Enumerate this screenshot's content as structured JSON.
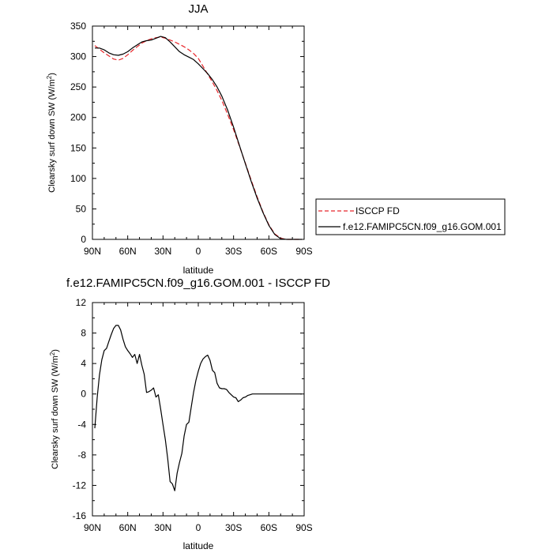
{
  "chart_data": [
    {
      "type": "line",
      "title": "JJA",
      "xlabel": "latitude",
      "ylabel": "Clearsky surf down SW (W/m",
      "ylabel_sup": "2",
      "ylabel_end": ")",
      "xlim": [
        90,
        -90
      ],
      "ylim": [
        0,
        350
      ],
      "xticks": [
        {
          "v": 90,
          "label": "90N"
        },
        {
          "v": 60,
          "label": "60N"
        },
        {
          "v": 30,
          "label": "30N"
        },
        {
          "v": 0,
          "label": "0"
        },
        {
          "v": -30,
          "label": "30S"
        },
        {
          "v": -60,
          "label": "60S"
        },
        {
          "v": -90,
          "label": "90S"
        }
      ],
      "yticks": [
        0,
        50,
        100,
        150,
        200,
        250,
        300,
        350
      ],
      "legend_position": "outside-right",
      "series": [
        {
          "name": "ISCCP FD",
          "color": "#e8262a",
          "dash": "dashed",
          "x": [
            88,
            84,
            80,
            76,
            72,
            68,
            64,
            60,
            56,
            52,
            48,
            44,
            40,
            36,
            32,
            28,
            24,
            20,
            16,
            12,
            8,
            4,
            0,
            -4,
            -8,
            -12,
            -16,
            -20,
            -25,
            -30,
            -35,
            -40,
            -45,
            -50,
            -55,
            -60,
            -65,
            -70,
            -75,
            -80,
            -85,
            -88
          ],
          "y": [
            318,
            312,
            306,
            301,
            296,
            294,
            297,
            303,
            310,
            316,
            322,
            326,
            329,
            331,
            332,
            330,
            327,
            324,
            320,
            316,
            311,
            305,
            297,
            284,
            271,
            258,
            244,
            228,
            205,
            180,
            153,
            125,
            97,
            70,
            45,
            24,
            9,
            2,
            0,
            0,
            0,
            0
          ]
        },
        {
          "name": "f.e12.FAMIPC5CN.f09_g16.GOM.001",
          "color": "#000000",
          "dash": "solid",
          "x": [
            88,
            84,
            80,
            76,
            72,
            68,
            64,
            60,
            56,
            52,
            48,
            44,
            40,
            36,
            32,
            28,
            24,
            20,
            16,
            12,
            8,
            4,
            0,
            -4,
            -8,
            -12,
            -16,
            -20,
            -25,
            -30,
            -35,
            -40,
            -45,
            -50,
            -55,
            -60,
            -65,
            -70,
            -75,
            -80,
            -85,
            -88
          ],
          "y": [
            314,
            314,
            311,
            306,
            303,
            302,
            304,
            308,
            314,
            319,
            324,
            326,
            327,
            330,
            333,
            331,
            324,
            316,
            308,
            303,
            299,
            295,
            288,
            280,
            272,
            262,
            250,
            235,
            212,
            184,
            154,
            124,
            95,
            68,
            44,
            23,
            8,
            1,
            0,
            0,
            0,
            0
          ]
        }
      ]
    },
    {
      "type": "line",
      "title": "f.e12.FAMIPC5CN.f09_g16.GOM.001 - ISCCP FD",
      "xlabel": "latitude",
      "ylabel": "Clearsky surf down SW (W/m",
      "ylabel_sup": "2",
      "ylabel_end": ")",
      "xlim": [
        90,
        -90
      ],
      "ylim": [
        -16,
        12
      ],
      "xticks": [
        {
          "v": 90,
          "label": "90N"
        },
        {
          "v": 60,
          "label": "60N"
        },
        {
          "v": 30,
          "label": "30N"
        },
        {
          "v": 0,
          "label": "0"
        },
        {
          "v": -30,
          "label": "30S"
        },
        {
          "v": -60,
          "label": "60S"
        },
        {
          "v": -90,
          "label": "90S"
        }
      ],
      "yticks": [
        12,
        8,
        4,
        0,
        -4,
        -8,
        -12,
        -16
      ],
      "series": [
        {
          "color": "#000000",
          "dash": "solid",
          "x": [
            88,
            86,
            84,
            82,
            80,
            78,
            76,
            74,
            72,
            70,
            68,
            66,
            64,
            62,
            60,
            58,
            56,
            54,
            52,
            50,
            48,
            46,
            44,
            42,
            40,
            38,
            36,
            34,
            32,
            30,
            28,
            26,
            24,
            22,
            20,
            18,
            16,
            14,
            12,
            10,
            8,
            6,
            4,
            2,
            0,
            -2,
            -4,
            -6,
            -8,
            -10,
            -12,
            -14,
            -16,
            -18,
            -20,
            -22,
            -24,
            -26,
            -28,
            -30,
            -32,
            -34,
            -36,
            -38,
            -40,
            -42,
            -44,
            -46,
            -48,
            -50,
            -52,
            -55,
            -60,
            -62,
            -65,
            -70,
            -75,
            -80,
            -85,
            -88
          ],
          "y": [
            -4.5,
            -0.5,
            2.5,
            4.5,
            5.7,
            6.0,
            6.9,
            7.8,
            8.6,
            9.0,
            9.0,
            8.4,
            7.2,
            6.2,
            5.7,
            5.3,
            4.8,
            5.2,
            4.0,
            5.2,
            3.8,
            2.6,
            0.2,
            0.3,
            0.5,
            0.8,
            -0.4,
            -0.1,
            -2.0,
            -4.0,
            -6.0,
            -8.5,
            -11.5,
            -11.8,
            -12.7,
            -10.4,
            -9.0,
            -7.8,
            -5.5,
            -4.0,
            -3.7,
            -1.7,
            0.2,
            1.8,
            3.0,
            4.0,
            4.6,
            4.9,
            5.1,
            4.4,
            3.1,
            2.8,
            1.4,
            0.8,
            0.7,
            0.7,
            0.6,
            0.2,
            -0.1,
            -0.4,
            -0.5,
            -1.0,
            -0.8,
            -0.5,
            -0.4,
            -0.2,
            -0.1,
            0,
            0,
            0,
            0,
            0,
            0,
            0,
            0,
            0,
            0,
            0,
            0,
            0
          ]
        }
      ]
    }
  ]
}
